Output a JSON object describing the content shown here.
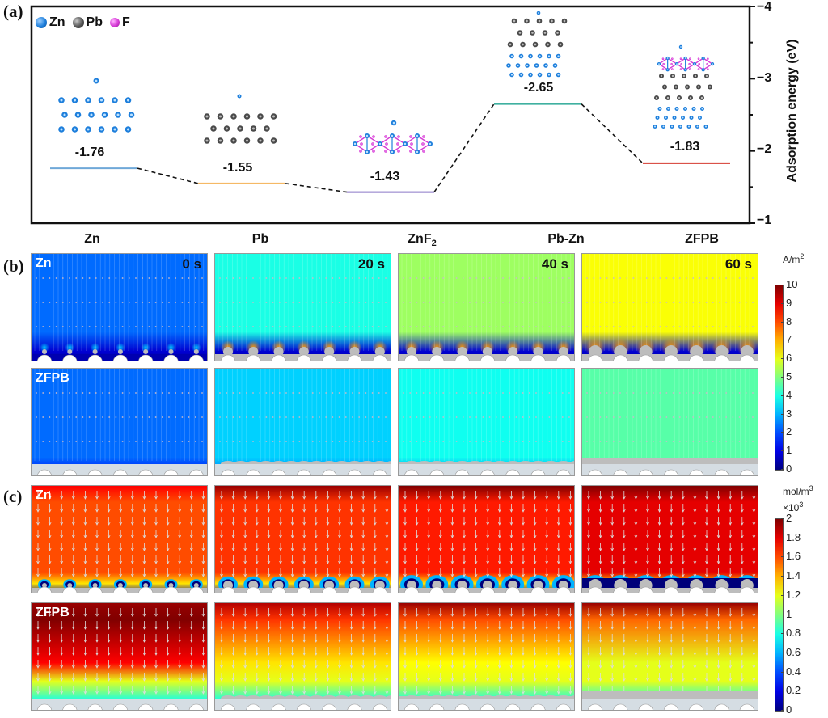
{
  "figure": {
    "panel_labels": [
      "(a)",
      "(b)",
      "(c)"
    ]
  },
  "chart_data": [
    {
      "type": "line",
      "panel": "(a)",
      "title": "",
      "xlabel": "",
      "ylabel": "Adsorption energy (eV)",
      "ylim": [
        -1,
        -4
      ],
      "yticks": [
        "−4",
        "−3",
        "−2",
        "−1"
      ],
      "y_axis_side": "right",
      "y_inverted": true,
      "legend": {
        "placement": "top-left",
        "entries": [
          {
            "label": "Zn",
            "color": "#1e7fdc"
          },
          {
            "label": "Pb",
            "color": "#555555"
          },
          {
            "label": "F",
            "color": "#d63ad6"
          }
        ]
      },
      "categories": [
        "Zn",
        "Pb",
        "ZnF",
        "Pb-Zn",
        "ZFPB"
      ],
      "category_subscripts": [
        "",
        "",
        "2",
        "",
        ""
      ],
      "values": [
        -1.76,
        -1.55,
        -1.43,
        -2.65,
        -1.83
      ],
      "data_labels": [
        "-1.76",
        "-1.55",
        "-1.43",
        "-2.65",
        "-1.83"
      ],
      "level_colors": [
        "#6fa8d8",
        "#f5b965",
        "#8a78c8",
        "#3fb0a0",
        "#d43a2f"
      ],
      "connector_style": "dashed-black",
      "structures": [
        "Zn slab",
        "Pb slab",
        "ZnF2 layer",
        "Pb on Zn",
        "ZnF2/Pb/Zn stack"
      ]
    },
    {
      "type": "heatmap",
      "panel": "(b)",
      "quantity_unit": "A/m²",
      "unit_base": "A/m",
      "unit_sup": "2",
      "colorbar": {
        "min": 0,
        "max": 10,
        "ticks": [
          "10",
          "9",
          "8",
          "7",
          "6",
          "5",
          "4",
          "3",
          "2",
          "1",
          "0"
        ]
      },
      "rows": [
        {
          "label": "Zn",
          "times": [
            "0 s",
            "20 s",
            "40 s",
            "60 s"
          ],
          "bulk_values": [
            2.3,
            4.0,
            5.3,
            6.2
          ],
          "tip_hotspots": [
            true,
            true,
            true,
            true
          ]
        },
        {
          "label": "ZFPB",
          "times": [
            "",
            "",
            "",
            ""
          ],
          "bulk_values": [
            2.3,
            3.3,
            3.9,
            4.6
          ],
          "tip_hotspots": [
            false,
            false,
            false,
            false
          ]
        }
      ]
    },
    {
      "type": "heatmap",
      "panel": "(c)",
      "quantity_unit": "mol/m³ ×10³",
      "unit_base": "mol/m",
      "unit_sup": "3",
      "unit_scale_base": "×10",
      "unit_scale_sup": "3",
      "colorbar": {
        "min": 0,
        "max": 2,
        "ticks": [
          "2",
          "1.8",
          "1.6",
          "1.4",
          "1.2",
          "1",
          "0.8",
          "0.6",
          "0.4",
          "0.2",
          "0"
        ]
      },
      "rows": [
        {
          "label": "Zn",
          "top_values": [
            1.75,
            1.95,
            2.0,
            2.0
          ],
          "bulk_values": [
            1.6,
            1.65,
            1.7,
            1.8
          ],
          "surface_values": [
            0.1,
            0.2,
            0.1,
            0.05
          ]
        },
        {
          "label": "ZFPB",
          "top_values": [
            1.95,
            1.9,
            1.95,
            1.95
          ],
          "bulk_values": [
            1.75,
            1.3,
            1.25,
            1.2
          ],
          "surface_values": [
            1.1,
            0.5,
            0.45,
            0.45
          ]
        }
      ]
    }
  ]
}
